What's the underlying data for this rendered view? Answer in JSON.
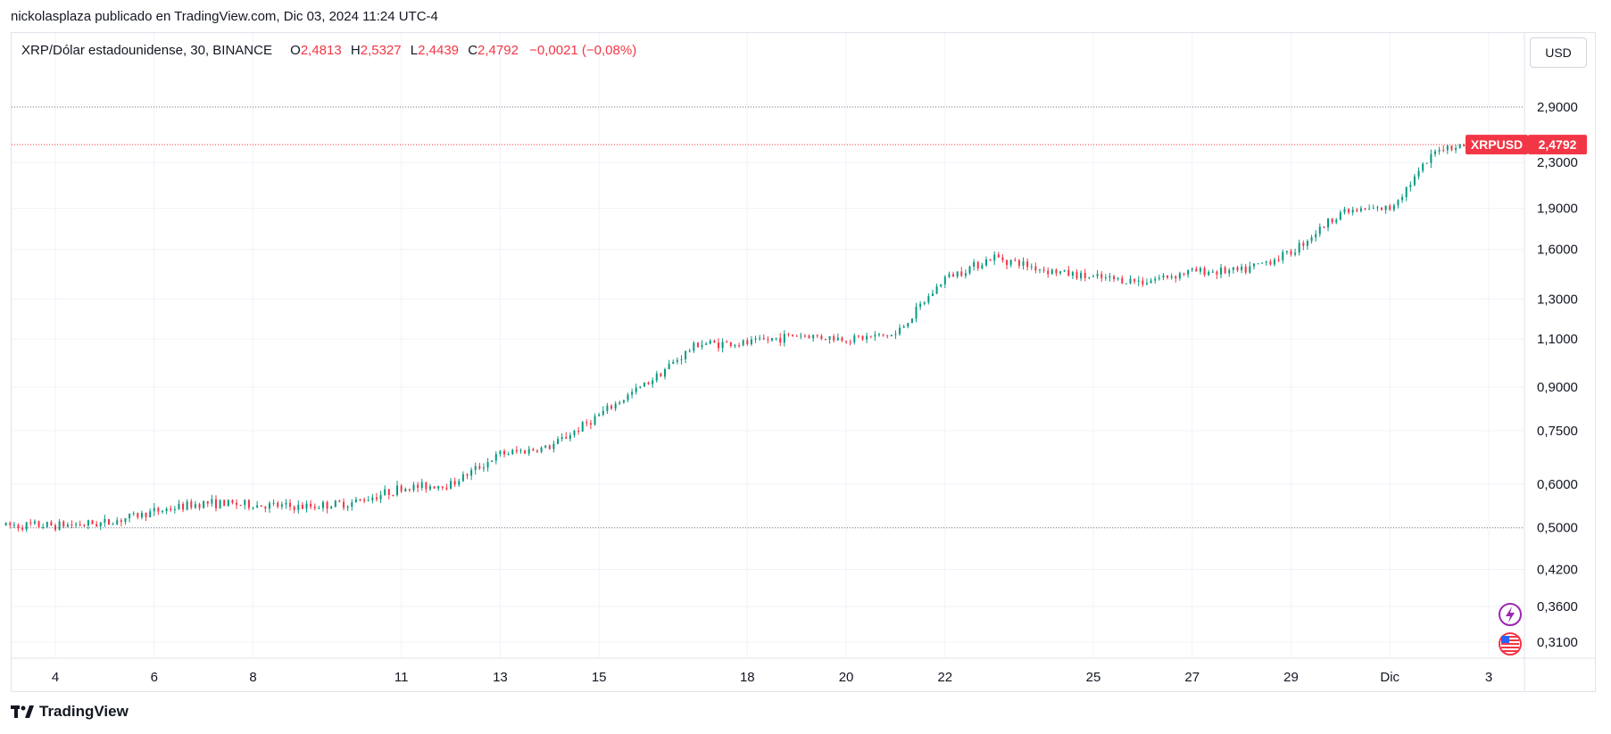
{
  "header": {
    "published_by": "nickolasplaza publicado en TradingView.com, Dic 03, 2024 11:24 UTC-4"
  },
  "legend": {
    "symbol": "XRP/Dólar estadounidense, 30, BINANCE",
    "open_label": "O",
    "open_value": "2,4813",
    "high_label": "H",
    "high_value": "2,5327",
    "low_label": "L",
    "low_value": "2,4439",
    "close_label": "C",
    "close_value": "2,4792",
    "change": "−0,0021 (−0,08%)"
  },
  "toolbar": {
    "currency_label": "USD"
  },
  "price_badge": {
    "ticker": "XRPUSD",
    "price": "2,4792"
  },
  "footer": {
    "brand": "TradingView"
  },
  "colors": {
    "up": "#089981",
    "down": "#f23645",
    "badge": "#f23645",
    "grid": "#f0f3fa"
  },
  "icons": {
    "flash": "lightning-icon",
    "flag": "us-flag-icon"
  },
  "chart_data": {
    "type": "candlestick",
    "scale": "log",
    "y_tick_labels": [
      "2,9000",
      "2,3000",
      "1,9000",
      "1,6000",
      "1,3000",
      "1,1000",
      "0,9000",
      "0,7500",
      "0,6000",
      "0,5000",
      "0,4200",
      "0,3600",
      "0,3100"
    ],
    "y_tick_values": [
      2.9,
      2.3,
      1.9,
      1.6,
      1.3,
      1.1,
      0.9,
      0.75,
      0.6,
      0.5,
      0.42,
      0.36,
      0.31
    ],
    "x_tick_labels": [
      "4",
      "6",
      "8",
      "11",
      "13",
      "15",
      "18",
      "20",
      "22",
      "25",
      "27",
      "29",
      "Dic",
      "3"
    ],
    "x_tick_dates": [
      "2024-11-04",
      "2024-11-06",
      "2024-11-08",
      "2024-11-11",
      "2024-11-13",
      "2024-11-15",
      "2024-11-18",
      "2024-11-20",
      "2024-11-22",
      "2024-11-25",
      "2024-11-27",
      "2024-11-29",
      "2024-12-01",
      "2024-12-03"
    ],
    "x_range": [
      "2024-11-03",
      "2024-12-03"
    ],
    "horizontal_levels": [
      {
        "value": 2.9,
        "style": "dotted",
        "color": "#787b86"
      },
      {
        "value": 2.4792,
        "style": "dotted",
        "color": "#f23645"
      },
      {
        "value": 0.5,
        "style": "dotted",
        "color": "#787b86"
      }
    ],
    "price_path": [
      [
        "2024-11-03",
        0.505
      ],
      [
        "2024-11-04",
        0.505
      ],
      [
        "2024-11-05",
        0.51
      ],
      [
        "2024-11-06",
        0.535
      ],
      [
        "2024-11-07",
        0.555
      ],
      [
        "2024-11-08",
        0.55
      ],
      [
        "2024-11-09",
        0.545
      ],
      [
        "2024-11-10",
        0.555
      ],
      [
        "2024-11-11",
        0.59
      ],
      [
        "2024-11-12",
        0.6
      ],
      [
        "2024-11-13",
        0.68
      ],
      [
        "2024-11-14",
        0.7
      ],
      [
        "2024-11-15",
        0.8
      ],
      [
        "2024-11-16",
        0.92
      ],
      [
        "2024-11-17",
        1.08
      ],
      [
        "2024-11-18",
        1.08
      ],
      [
        "2024-11-19",
        1.12
      ],
      [
        "2024-11-20",
        1.1
      ],
      [
        "2024-11-21",
        1.12
      ],
      [
        "2024-11-22",
        1.42
      ],
      [
        "2024-11-23",
        1.55
      ],
      [
        "2024-11-24",
        1.47
      ],
      [
        "2024-11-25",
        1.42
      ],
      [
        "2024-11-26",
        1.4
      ],
      [
        "2024-11-27",
        1.46
      ],
      [
        "2024-11-28",
        1.46
      ],
      [
        "2024-11-29",
        1.58
      ],
      [
        "2024-11-30",
        1.87
      ],
      [
        "2024-12-01",
        1.9
      ],
      [
        "2024-12-02",
        2.45
      ],
      [
        "2024-12-03",
        2.48
      ]
    ]
  }
}
